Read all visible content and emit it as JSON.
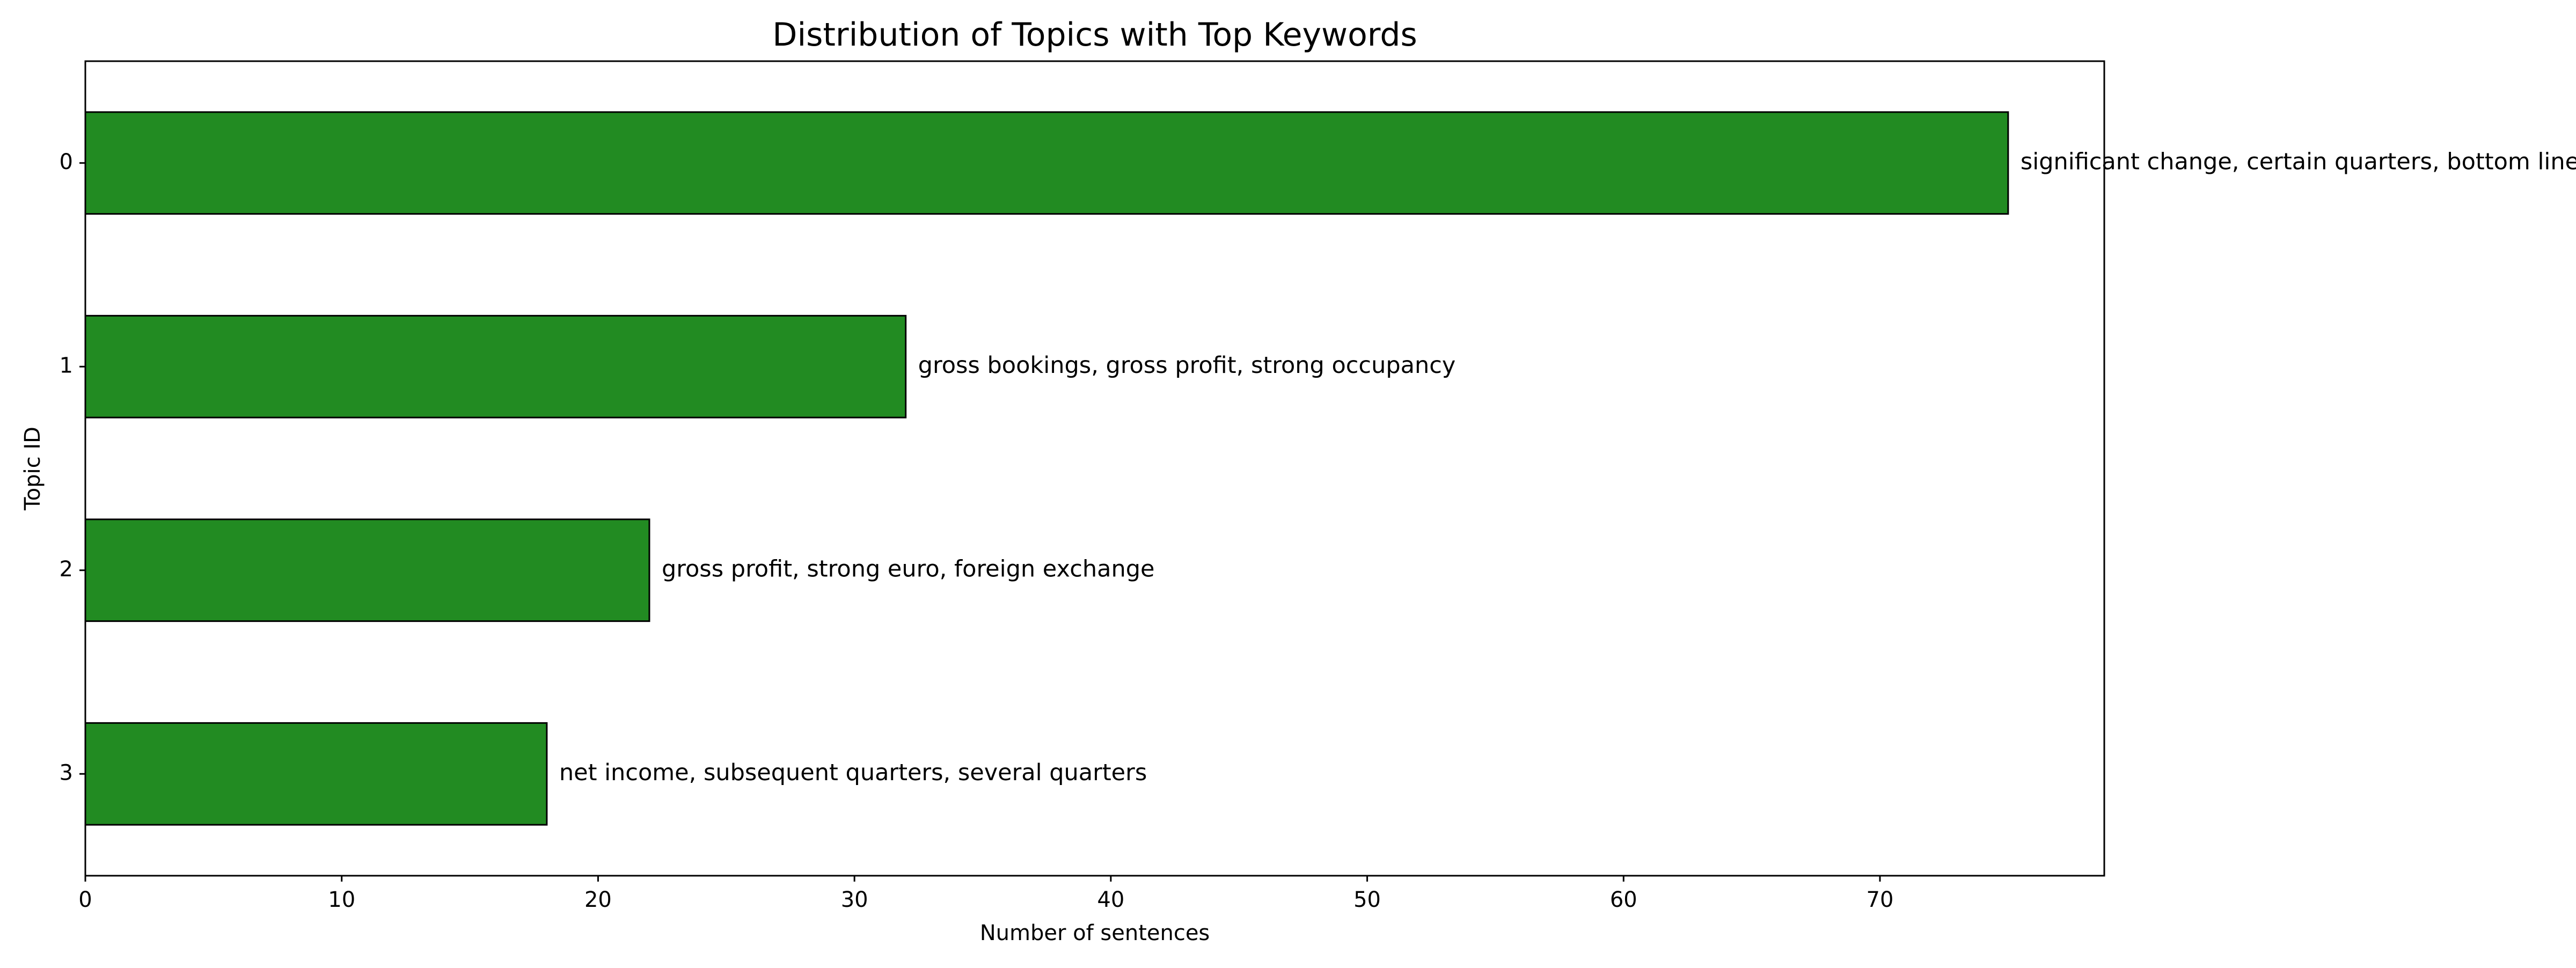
{
  "chart_data": {
    "type": "bar",
    "orientation": "horizontal",
    "title": "Distribution of Topics with Top Keywords",
    "xlabel": "Number of sentences",
    "ylabel": "Topic ID",
    "categories": [
      "0",
      "1",
      "2",
      "3"
    ],
    "values": [
      75,
      32,
      22,
      18
    ],
    "bar_labels": [
      "significant change, certain quarters, bottom line",
      "gross bookings, gross profit, strong occupancy",
      "gross profit, strong euro, foreign exchange",
      "net income, subsequent quarters, several quarters"
    ],
    "xticks": [
      "0",
      "10",
      "20",
      "30",
      "40",
      "50",
      "60",
      "70"
    ],
    "xlim": [
      0,
      78.75
    ],
    "grid": false,
    "legend": "none",
    "colors": {
      "bar_fill": "#228b22",
      "bar_edge": "#000000",
      "axes": "#000000"
    }
  }
}
